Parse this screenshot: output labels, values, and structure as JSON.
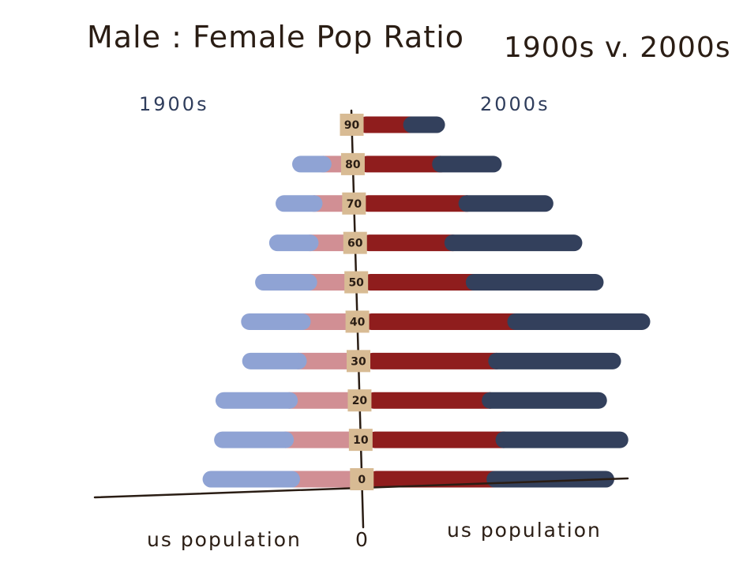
{
  "chart_data": {
    "type": "bar",
    "title": "Male : Female Pop Ratio",
    "subtitle": "1900s v. 2000s",
    "left_label": "1900s",
    "right_label": "2000s",
    "xlabel_left": "us population",
    "xlabel_right": "us population",
    "origin_label": "0",
    "categories": [
      "0",
      "10",
      "20",
      "30",
      "40",
      "50",
      "60",
      "70",
      "80",
      "90"
    ],
    "series": [
      {
        "group": "1900s",
        "values": [
          3.2,
          2.5,
          2.6,
          1.9,
          2.1,
          1.8,
          1.3,
          1.2,
          0.9,
          0
        ],
        "color": "#8fa3d4"
      },
      {
        "group": "1900s",
        "values": [
          2.4,
          2.6,
          2.4,
          2.0,
          1.8,
          1.5,
          1.4,
          1.2,
          0.8,
          0
        ],
        "color": "#d18f94"
      },
      {
        "group": "2000s",
        "values": [
          4.7,
          5.1,
          4.6,
          4.9,
          5.7,
          4.1,
          3.3,
          3.9,
          2.9,
          1.8
        ],
        "color": "#8f1d1d"
      },
      {
        "group": "2000s",
        "values": [
          4.4,
          4.6,
          4.3,
          4.6,
          5.0,
          4.8,
          4.8,
          3.1,
          2.1,
          1.0
        ],
        "color": "#33405c"
      }
    ],
    "grid": false,
    "legend": "none"
  }
}
